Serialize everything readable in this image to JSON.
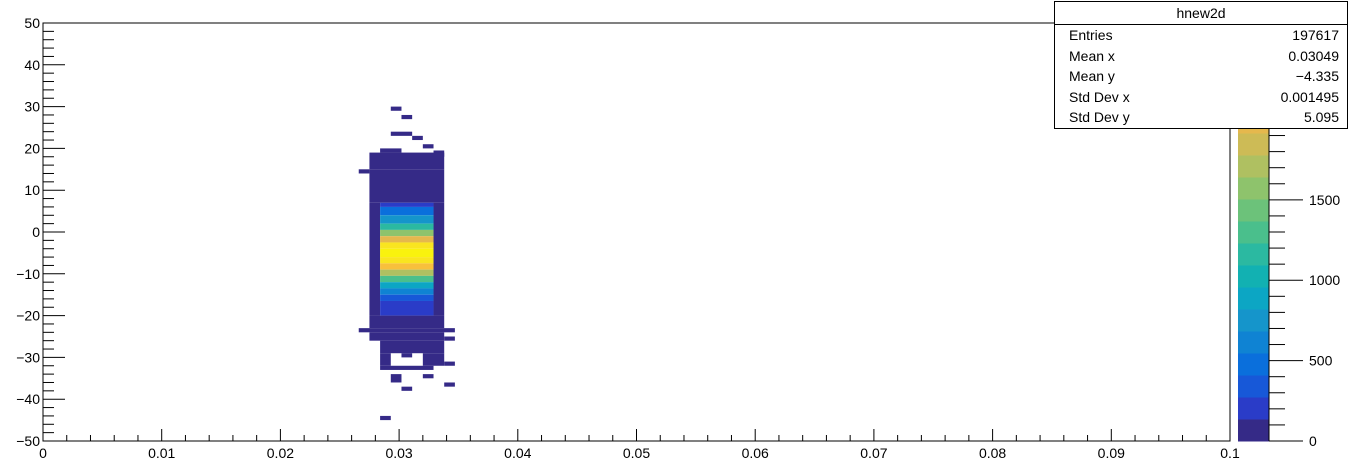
{
  "chart_data": {
    "type": "heatmap",
    "title": "",
    "xlabel": "",
    "ylabel": "",
    "xlim": [
      0,
      0.1
    ],
    "ylim": [
      -50,
      50
    ],
    "zlim": [
      0,
      2600
    ],
    "x_ticks": [
      "0",
      "0.01",
      "0.02",
      "0.03",
      "0.04",
      "0.05",
      "0.06",
      "0.07",
      "0.08",
      "0.09",
      "0.1"
    ],
    "y_ticks": [
      "−50",
      "−40",
      "−30",
      "−20",
      "−10",
      "0",
      "10",
      "20",
      "30",
      "40",
      "50"
    ],
    "z_ticks": [
      "0",
      "500",
      "1000",
      "1500",
      "2000"
    ],
    "palette": [
      "#352a87",
      "#2a3cc8",
      "#1758d8",
      "#0a6fdc",
      "#0f83d3",
      "#1595cb",
      "#0ca6c4",
      "#12b1b2",
      "#2bb9a1",
      "#4abf8c",
      "#6cc27a",
      "#8ec36c",
      "#afc061",
      "#cdbb56",
      "#e5b84d",
      "#f8c03c",
      "#fbd42e",
      "#f9e520",
      "#f9f20e"
    ],
    "cells": [
      {
        "x": [
          0.0293,
          0.0302
        ],
        "y": [
          29.0,
          30.0
        ],
        "z": 3
      },
      {
        "x": [
          0.0302,
          0.0311
        ],
        "y": [
          27.0,
          28.0
        ],
        "z": 3
      },
      {
        "x": [
          0.0293,
          0.0311
        ],
        "y": [
          23.0,
          24.0
        ],
        "z": 3
      },
      {
        "x": [
          0.0311,
          0.032
        ],
        "y": [
          22.0,
          23.0
        ],
        "z": 3
      },
      {
        "x": [
          0.032,
          0.0329
        ],
        "y": [
          20.0,
          21.0
        ],
        "z": 4
      },
      {
        "x": [
          0.0284,
          0.0302
        ],
        "y": [
          19.0,
          20.0
        ],
        "z": 5
      },
      {
        "x": [
          0.0329,
          0.0338
        ],
        "y": [
          18.0,
          19.5
        ],
        "z": 4
      },
      {
        "x": [
          0.0275,
          0.0338
        ],
        "y": [
          15.0,
          19.0
        ],
        "z": 10
      },
      {
        "x": [
          0.0266,
          0.0275
        ],
        "y": [
          14.0,
          15.0
        ],
        "z": 4
      },
      {
        "x": [
          0.0275,
          0.0338
        ],
        "y": [
          7.0,
          15.0
        ],
        "z": 40
      },
      {
        "x": [
          0.0275,
          0.0284
        ],
        "y": [
          -20.0,
          7.0
        ],
        "z": 60
      },
      {
        "x": [
          0.0329,
          0.0338
        ],
        "y": [
          -20.0,
          7.0
        ],
        "z": 60
      },
      {
        "x": [
          0.0284,
          0.0329
        ],
        "y": [
          6.0,
          7.0
        ],
        "z": 180
      },
      {
        "x": [
          0.0284,
          0.0329
        ],
        "y": [
          4.0,
          6.0
        ],
        "z": 450
      },
      {
        "x": [
          0.0284,
          0.0329
        ],
        "y": [
          2.0,
          4.0
        ],
        "z": 800
      },
      {
        "x": [
          0.0284,
          0.0329
        ],
        "y": [
          0.5,
          2.0
        ],
        "z": 1200
      },
      {
        "x": [
          0.0284,
          0.0329
        ],
        "y": [
          -1.0,
          0.5
        ],
        "z": 1600
      },
      {
        "x": [
          0.0284,
          0.0329
        ],
        "y": [
          -2.5,
          -1.0
        ],
        "z": 2000
      },
      {
        "x": [
          0.0284,
          0.0329
        ],
        "y": [
          -4.0,
          -2.5
        ],
        "z": 2350
      },
      {
        "x": [
          0.0284,
          0.0329
        ],
        "y": [
          -6.0,
          -4.0
        ],
        "z": 2550
      },
      {
        "x": [
          0.0284,
          0.0329
        ],
        "y": [
          -7.5,
          -6.0
        ],
        "z": 2450
      },
      {
        "x": [
          0.0284,
          0.0329
        ],
        "y": [
          -9.0,
          -7.5
        ],
        "z": 2100
      },
      {
        "x": [
          0.0284,
          0.0329
        ],
        "y": [
          -10.5,
          -9.0
        ],
        "z": 1700
      },
      {
        "x": [
          0.0284,
          0.0329
        ],
        "y": [
          -12.0,
          -10.5
        ],
        "z": 1300
      },
      {
        "x": [
          0.0284,
          0.0329
        ],
        "y": [
          -13.5,
          -12.0
        ],
        "z": 900
      },
      {
        "x": [
          0.0284,
          0.0329
        ],
        "y": [
          -15.0,
          -13.5
        ],
        "z": 600
      },
      {
        "x": [
          0.0284,
          0.0329
        ],
        "y": [
          -16.5,
          -15.0
        ],
        "z": 350
      },
      {
        "x": [
          0.0284,
          0.0329
        ],
        "y": [
          -20.0,
          -16.5
        ],
        "z": 150
      },
      {
        "x": [
          0.0275,
          0.0338
        ],
        "y": [
          -23.0,
          -20.0
        ],
        "z": 20
      },
      {
        "x": [
          0.0266,
          0.0347
        ],
        "y": [
          -24.0,
          -23.0
        ],
        "z": 5
      },
      {
        "x": [
          0.0275,
          0.0338
        ],
        "y": [
          -26.0,
          -24.0
        ],
        "z": 8
      },
      {
        "x": [
          0.0338,
          0.0347
        ],
        "y": [
          -26.0,
          -25.0
        ],
        "z": 3
      },
      {
        "x": [
          0.0284,
          0.0338
        ],
        "y": [
          -29.0,
          -26.0
        ],
        "z": 6
      },
      {
        "x": [
          0.0284,
          0.0293
        ],
        "y": [
          -32.0,
          -29.0
        ],
        "z": 4
      },
      {
        "x": [
          0.0302,
          0.0311
        ],
        "y": [
          -30.0,
          -29.0
        ],
        "z": 3
      },
      {
        "x": [
          0.032,
          0.0338
        ],
        "y": [
          -32.0,
          -29.0
        ],
        "z": 4
      },
      {
        "x": [
          0.0338,
          0.0347
        ],
        "y": [
          -32.0,
          -31.0
        ],
        "z": 3
      },
      {
        "x": [
          0.0284,
          0.0329
        ],
        "y": [
          -33.0,
          -32.0
        ],
        "z": 3
      },
      {
        "x": [
          0.0293,
          0.0302
        ],
        "y": [
          -36.0,
          -34.0
        ],
        "z": 3
      },
      {
        "x": [
          0.032,
          0.0329
        ],
        "y": [
          -35.0,
          -34.0
        ],
        "z": 3
      },
      {
        "x": [
          0.0338,
          0.0347
        ],
        "y": [
          -37.0,
          -36.0
        ],
        "z": 3
      },
      {
        "x": [
          0.0302,
          0.0311
        ],
        "y": [
          -38.0,
          -37.0
        ],
        "z": 3
      },
      {
        "x": [
          0.0284,
          0.0293
        ],
        "y": [
          -45.0,
          -44.0
        ],
        "z": 3
      }
    ]
  },
  "stats": {
    "title": "hnew2d",
    "rows": [
      {
        "label": "Entries",
        "value": "197617"
      },
      {
        "label": "Mean x",
        "value": "0.03049"
      },
      {
        "label": "Mean y",
        "value": "−4.335"
      },
      {
        "label": "Std Dev x",
        "value": "0.001495"
      },
      {
        "label": "Std Dev y",
        "value": "5.095"
      }
    ]
  }
}
